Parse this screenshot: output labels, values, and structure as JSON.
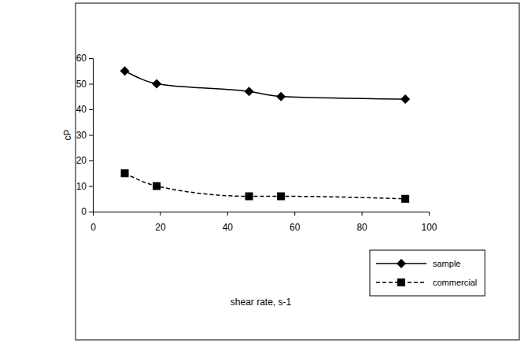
{
  "chart_data": {
    "type": "line",
    "x_label": "shear rate, s-1",
    "y_label": "cP",
    "x": [
      9.5,
      19,
      46.5,
      56,
      93
    ],
    "series": [
      {
        "name": "sample",
        "color": "#000000",
        "marker": "diamond",
        "line_style": "solid",
        "values": [
          55,
          50,
          47,
          45,
          44
        ]
      },
      {
        "name": "commercial",
        "color": "#000000",
        "marker": "square",
        "line_style": "dashed",
        "values": [
          15,
          10,
          6,
          6,
          5
        ]
      }
    ],
    "xlim": [
      0,
      100
    ],
    "xticks": [
      0,
      20,
      40,
      60,
      80,
      100
    ],
    "ylim": [
      0,
      60
    ],
    "yticks": [
      0,
      10,
      20,
      30,
      40,
      50,
      60
    ],
    "grid": false,
    "legend": "bottom-right"
  }
}
